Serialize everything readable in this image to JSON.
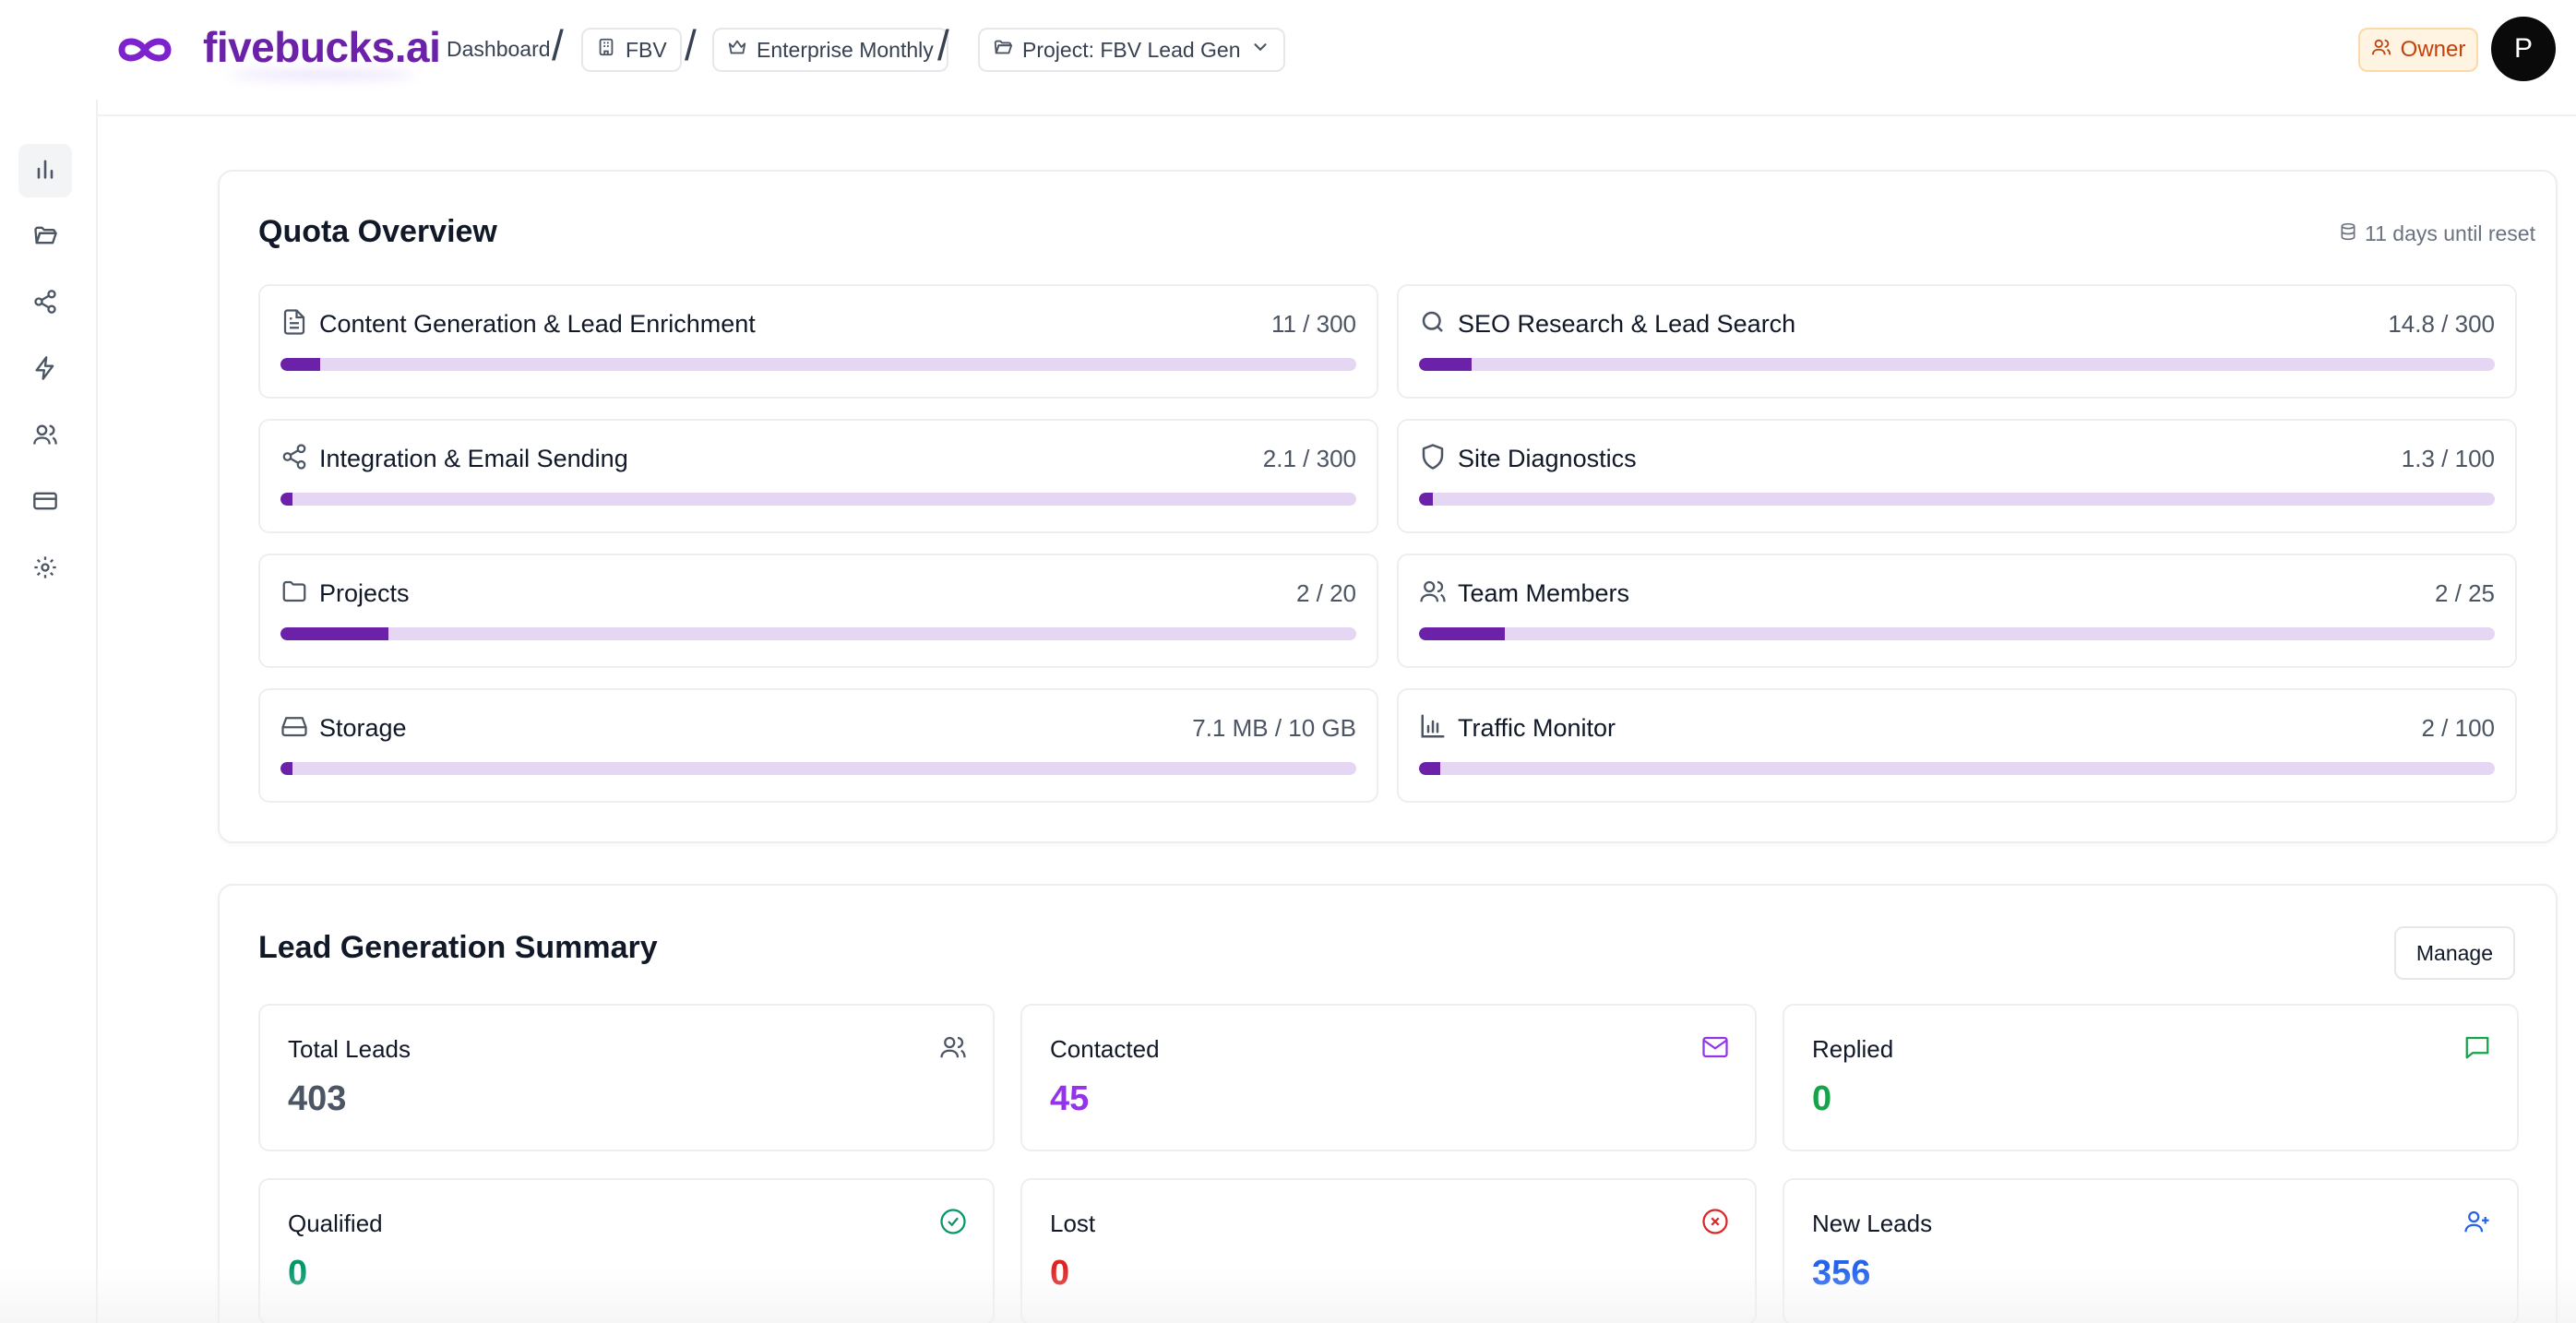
{
  "header": {
    "brand": "fivebucks.ai",
    "breadcrumb_dashboard": "Dashboard",
    "org_chip": "FBV",
    "plan_chip": "Enterprise Monthly",
    "project_chip": "Project: FBV Lead Gen",
    "role_badge": "Owner",
    "avatar_initial": "P"
  },
  "sidebar": {
    "items": [
      {
        "icon": "bar-chart-icon"
      },
      {
        "icon": "folder-open-icon"
      },
      {
        "icon": "share-icon"
      },
      {
        "icon": "lightning-icon"
      },
      {
        "icon": "users-icon"
      },
      {
        "icon": "credit-card-icon"
      },
      {
        "icon": "gear-icon"
      }
    ]
  },
  "quota": {
    "title": "Quota Overview",
    "reset_text": "11 days until reset",
    "items": [
      {
        "label": "Content Generation & Lead Enrichment",
        "value": "11 / 300",
        "fraction": 0.037
      },
      {
        "label": "SEO Research & Lead Search",
        "value": "14.8 / 300",
        "fraction": 0.049
      },
      {
        "label": "Integration & Email Sending",
        "value": "2.1 / 300",
        "fraction": 0.007
      },
      {
        "label": "Site Diagnostics",
        "value": "1.3 / 100",
        "fraction": 0.013
      },
      {
        "label": "Projects",
        "value": "2 / 20",
        "fraction": 0.1
      },
      {
        "label": "Team Members",
        "value": "2 / 25",
        "fraction": 0.08
      },
      {
        "label": "Storage",
        "value": "7.1 MB / 10 GB",
        "fraction": 0.0007
      },
      {
        "label": "Traffic Monitor",
        "value": "2 / 100",
        "fraction": 0.02
      }
    ]
  },
  "leads": {
    "title": "Lead Generation Summary",
    "manage_label": "Manage",
    "stats": [
      {
        "label": "Total Leads",
        "value": "403",
        "color": "#4b5563"
      },
      {
        "label": "Contacted",
        "value": "45",
        "color": "#9333ea"
      },
      {
        "label": "Replied",
        "value": "0",
        "color": "#16a34a"
      },
      {
        "label": "Qualified",
        "value": "0",
        "color": "#059669"
      },
      {
        "label": "Lost",
        "value": "0",
        "color": "#dc2626"
      },
      {
        "label": "New Leads",
        "value": "356",
        "color": "#2563eb"
      }
    ]
  },
  "colors": {
    "brand": "#6b21a8",
    "progress_track": "#e5d7f3",
    "owner_badge_bg": "#fff3e2",
    "owner_badge_text": "#c2410c"
  }
}
